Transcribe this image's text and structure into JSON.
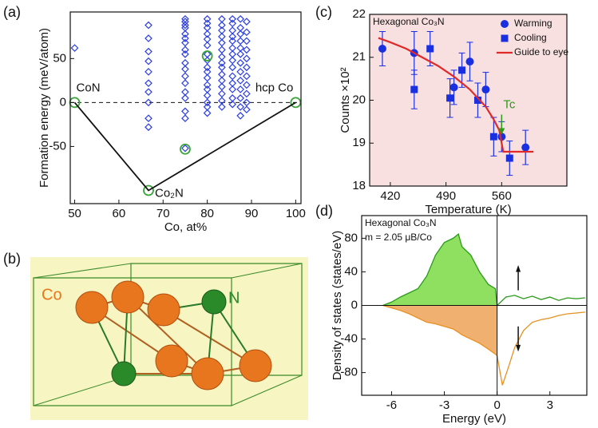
{
  "panels": [
    "(a)",
    "(b)",
    "(c)",
    "(d)"
  ],
  "structure": {
    "labels": [
      "Co",
      "N"
    ]
  },
  "chart_data": [
    {
      "type": "scatter",
      "x_label": "Co, at%",
      "y_label": "Formation energy (meV/atom)",
      "annotations": [
        "CoN",
        "hcp Co",
        "Co₂N"
      ],
      "xlim": [
        49,
        101.2
      ],
      "xticks": [
        50,
        60,
        70,
        80,
        90,
        100
      ],
      "ylim": [
        -115,
        103
      ],
      "yticks": [
        -50,
        0,
        50
      ],
      "series": [
        {
          "color": "#2b3de0",
          "marker": "diamond",
          "x": [
            50,
            66.7,
            66.7,
            66.7,
            66.7,
            66.7,
            66.7,
            66.7,
            66.7,
            66.7,
            66.7,
            75,
            75,
            75,
            75,
            75,
            75,
            75,
            75,
            75,
            75,
            75,
            75,
            75,
            75,
            75,
            75,
            75,
            75,
            80,
            80,
            80,
            80,
            80,
            80,
            80,
            80,
            80,
            80,
            80,
            80,
            80,
            80,
            80,
            80,
            80,
            83.3,
            83.3,
            83.3,
            83.3,
            83.3,
            83.3,
            83.3,
            83.3,
            83.3,
            83.3,
            83.3,
            83.3,
            83.3,
            83.3,
            83.3,
            85.7,
            85.7,
            85.7,
            85.7,
            85.7,
            85.7,
            85.7,
            85.7,
            85.7,
            85.7,
            85.7,
            85.7,
            85.7,
            85.7,
            87.5,
            87.5,
            87.5,
            87.5,
            87.5,
            87.5,
            87.5,
            87.5,
            87.5,
            87.5,
            87.5,
            87.5,
            87.5,
            88.9,
            88.9,
            88.9,
            88.9,
            88.9,
            88.9,
            88.9,
            88.9,
            88.9,
            88.9,
            88.9
          ],
          "values": [
            62,
            88,
            73,
            58,
            47,
            35,
            22,
            12,
            0,
            -18,
            -28,
            95,
            92,
            88,
            85,
            78,
            73,
            68,
            60,
            55,
            45,
            38,
            30,
            22,
            12,
            5,
            -10,
            -18,
            -52,
            95,
            90,
            85,
            78,
            72,
            65,
            55,
            48,
            40,
            35,
            28,
            20,
            15,
            8,
            0,
            -5,
            -12,
            95,
            88,
            82,
            75,
            68,
            60,
            52,
            45,
            40,
            32,
            25,
            18,
            10,
            2,
            -5,
            95,
            90,
            82,
            75,
            70,
            62,
            55,
            48,
            40,
            30,
            22,
            15,
            5,
            -2,
            95,
            85,
            78,
            70,
            62,
            55,
            45,
            35,
            25,
            15,
            5,
            -5,
            -15,
            92,
            80,
            70,
            60,
            50,
            40,
            30,
            20,
            10,
            0,
            -8
          ]
        },
        {
          "color": "#3aa43a",
          "marker": "circle",
          "x": [
            50,
            66.7,
            75,
            80,
            100
          ],
          "values": [
            0,
            -100,
            -53,
            53,
            0
          ]
        },
        {
          "color": "#111111",
          "marker": "line",
          "x": [
            50,
            66.7,
            100
          ],
          "values": [
            0,
            -100,
            0
          ]
        }
      ]
    },
    {
      "type": "errorbar",
      "x_label": "Temperature (K)",
      "y_label": "Counts ×10²",
      "annotations": [
        "Hexagonal Co₃N",
        "Tc"
      ],
      "xlim": [
        394,
        642
      ],
      "xticks": [
        420,
        490,
        560
      ],
      "ylim": [
        18,
        22
      ],
      "yticks": [
        18,
        19,
        20,
        21,
        22
      ],
      "legend": "top-right",
      "background": "#f9e0e0",
      "series": [
        {
          "name": "Warming",
          "color": "#1a2fe0",
          "marker": "circle",
          "x": [
            410,
            450,
            500,
            520,
            540,
            560,
            590
          ],
          "values": [
            21.2,
            21.1,
            20.3,
            20.9,
            20.25,
            19.15,
            18.9
          ],
          "errors": [
            0.4,
            0.5,
            0.4,
            0.45,
            0.4,
            0.35,
            0.4
          ]
        },
        {
          "name": "Cooling",
          "color": "#1a2fe0",
          "marker": "square",
          "x": [
            450,
            470,
            495,
            510,
            530,
            550,
            570
          ],
          "values": [
            20.25,
            21.2,
            20.05,
            20.7,
            20.0,
            19.15,
            18.65
          ],
          "errors": [
            0.45,
            0.4,
            0.45,
            0.4,
            0.4,
            0.45,
            0.4
          ]
        },
        {
          "name": "Guide to eye",
          "color": "#e02a2a",
          "marker": "line",
          "x": [
            405,
            420,
            440,
            460,
            480,
            500,
            520,
            540,
            550,
            557,
            562,
            600
          ],
          "values": [
            21.45,
            21.35,
            21.2,
            21.0,
            20.8,
            20.55,
            20.25,
            19.85,
            19.55,
            19.3,
            18.8,
            18.8
          ]
        }
      ]
    },
    {
      "type": "line",
      "x_label": "Energy (eV)",
      "y_label": "Density of states (states/eV)",
      "annotations": [
        "Hexagonal Co₃N",
        "m = 2.05 μB/Co"
      ],
      "xlim": [
        -7.7,
        5.1
      ],
      "xticks": [
        -6,
        -3,
        0,
        3
      ],
      "ylim": [
        -107,
        107
      ],
      "yticks": [
        80,
        40,
        0,
        -40,
        -80
      ],
      "series": [
        {
          "color": "#2a9a1a",
          "fill": "#8fe060",
          "x": [
            -6.5,
            -6,
            -5.5,
            -5,
            -4.5,
            -4,
            -3.5,
            -3,
            -2.5,
            -2.2,
            -2,
            -1.5,
            -1,
            -0.5,
            -0.1,
            0,
            0.5,
            1,
            1.5,
            2,
            2.5,
            3,
            3.5,
            4,
            4.5,
            5
          ],
          "values": [
            0,
            4,
            10,
            15,
            20,
            35,
            60,
            75,
            80,
            85,
            70,
            60,
            40,
            25,
            20,
            0,
            10,
            12,
            8,
            11,
            7,
            10,
            6,
            9,
            8,
            9
          ]
        },
        {
          "color": "#e89020",
          "fill": "#f0b070",
          "x": [
            -6.5,
            -6,
            -5.5,
            -5,
            -4.5,
            -4,
            -3.5,
            -3,
            -2.5,
            -2.2,
            -2,
            -1.5,
            -1,
            -0.5,
            -0.1,
            0,
            0.3,
            0.7,
            1,
            1.5,
            2,
            2.5,
            3,
            3.5,
            4,
            4.5,
            5
          ],
          "values": [
            0,
            -3,
            -6,
            -10,
            -15,
            -20,
            -22,
            -25,
            -28,
            -32,
            -35,
            -40,
            -45,
            -52,
            -58,
            -60,
            -95,
            -70,
            -50,
            -30,
            -20,
            -17,
            -15,
            -12,
            -10,
            -9,
            -8
          ]
        }
      ]
    }
  ]
}
